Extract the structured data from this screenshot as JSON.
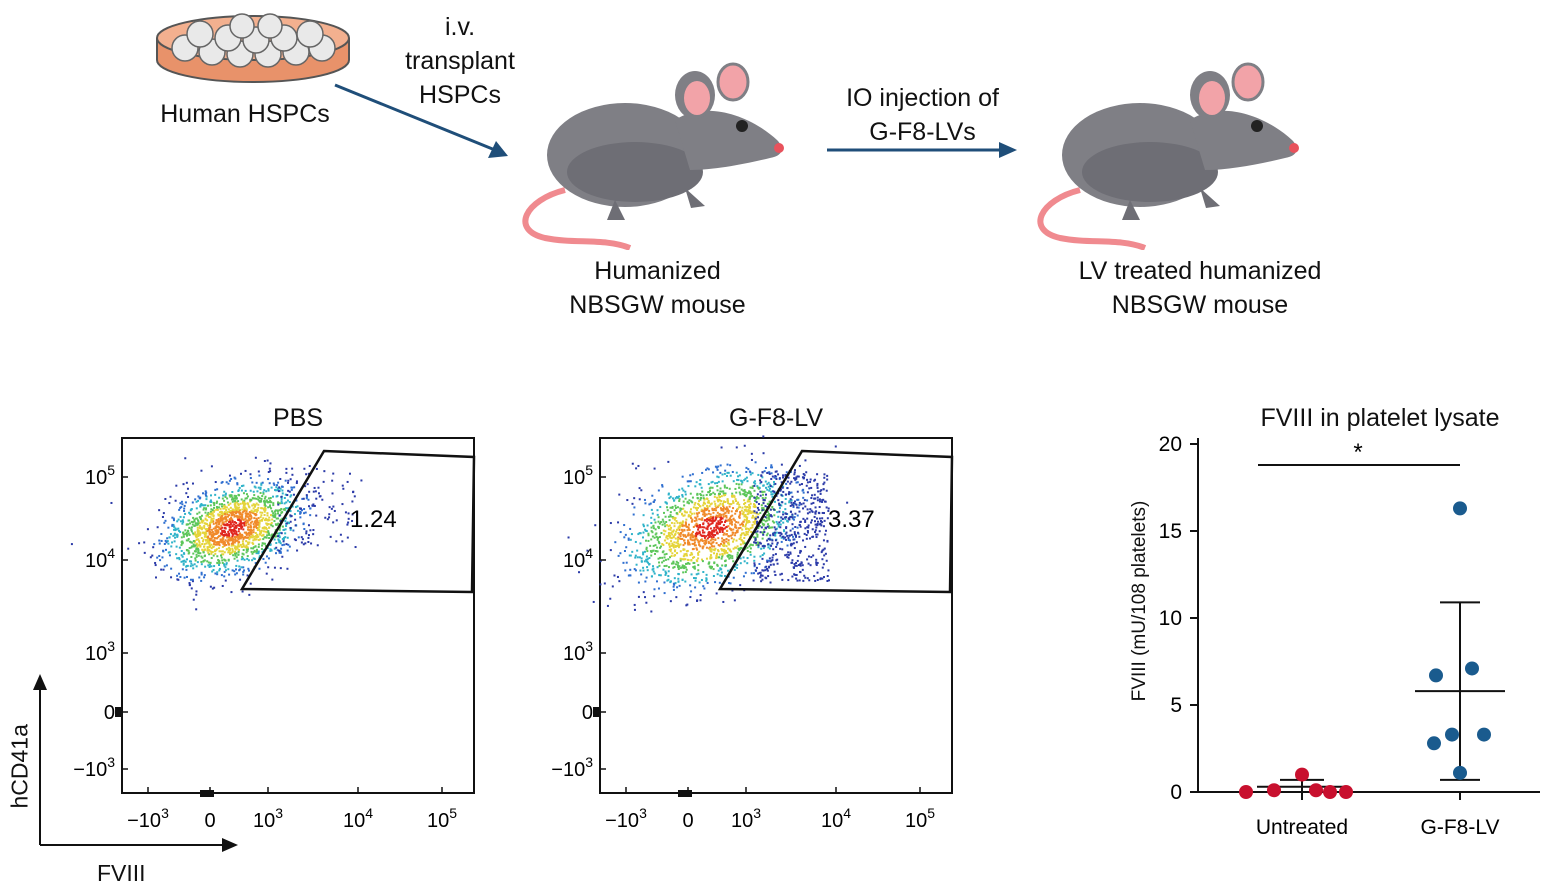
{
  "schematic": {
    "hspc_label": "Human HSPCs",
    "arrow1_lines": [
      "i.v.",
      "transplant",
      "HSPCs"
    ],
    "mouse1_lines": [
      "Humanized",
      "NBSGW mouse"
    ],
    "arrow2_lines": [
      "IO injection of",
      "G-F8-LVs"
    ],
    "mouse2_lines": [
      "LV treated humanized",
      "NBSGW mouse"
    ],
    "arrow_color": "#1f4e79"
  },
  "flow": {
    "y_axis_label": "hCD41a",
    "x_axis_label": "FVIII",
    "y_ticks": [
      "10^5",
      "10^4",
      "10^3",
      "0",
      "−10^3"
    ],
    "x_ticks": [
      "−10^3",
      "0",
      "10^3",
      "10^4",
      "10^5"
    ],
    "panels": [
      {
        "title": "PBS",
        "gate_percent": "1.24"
      },
      {
        "title": "G-F8-LV",
        "gate_percent": "3.37"
      }
    ]
  },
  "chart_data": {
    "type": "scatter",
    "title": "FVIII in platelet lysate",
    "ylabel": "FVIII (mU/108 platelets)",
    "xlabel": "",
    "categories": [
      "Untreated",
      "G-F8-LV"
    ],
    "ylim": [
      0,
      20
    ],
    "yticks": [
      0,
      5,
      10,
      15,
      20
    ],
    "significance": "*",
    "series": [
      {
        "category": "Untreated",
        "color": "#c8102e",
        "values": [
          0.0,
          0.1,
          1.0,
          0.1,
          0.0,
          0.0
        ],
        "mean": 0.3,
        "error": [
          0.0,
          0.7
        ]
      },
      {
        "category": "G-F8-LV",
        "color": "#1a5b8e",
        "values": [
          16.3,
          6.7,
          7.1,
          2.8,
          3.3,
          3.3,
          1.1
        ],
        "mean": 5.8,
        "error": [
          0.7,
          10.9
        ]
      }
    ]
  }
}
